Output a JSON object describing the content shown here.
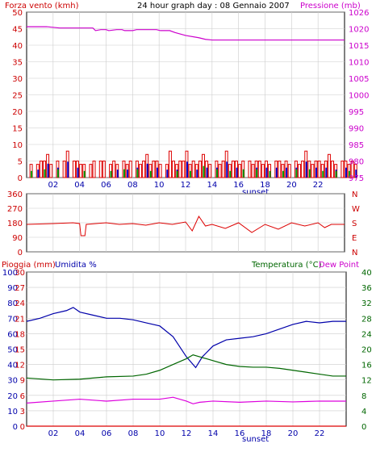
{
  "chart_data": [
    {
      "type": "line",
      "panel": "wind-pressure",
      "title": "24 hour graph day : 08 Gennaio 2007",
      "left_axis_label": "Forza vento (kmh)",
      "right_axis_label": "Pressione (mb)",
      "left_ticks": [
        0,
        5,
        10,
        15,
        20,
        25,
        30,
        35,
        40,
        45,
        50
      ],
      "right_ticks": [
        975,
        980,
        985,
        990,
        995,
        1000,
        1005,
        1010,
        1015,
        1020,
        1026
      ],
      "ylim_left": [
        0,
        50
      ],
      "ylim_right": [
        975,
        1026
      ],
      "x_ticks": [
        "02",
        "04",
        "06",
        "08",
        "10",
        "12",
        "14",
        "16",
        "18",
        "20",
        "22"
      ],
      "x_note": "sunset",
      "grid": true,
      "series": [
        {
          "name": "Pressione",
          "axis": "right",
          "color": "#cc00cc",
          "points": [
            [
              0,
              1021.5
            ],
            [
              1.5,
              1021.5
            ],
            [
              2.5,
              1021.1
            ],
            [
              5,
              1021.1
            ],
            [
              5.2,
              1020.3
            ],
            [
              5.6,
              1020.6
            ],
            [
              6,
              1020.6
            ],
            [
              6.2,
              1020.3
            ],
            [
              6.8,
              1020.6
            ],
            [
              7.2,
              1020.6
            ],
            [
              7.4,
              1020.3
            ],
            [
              8,
              1020.3
            ],
            [
              8.3,
              1020.6
            ],
            [
              9.8,
              1020.6
            ],
            [
              10.1,
              1020.3
            ],
            [
              10.8,
              1020.3
            ],
            [
              11.2,
              1019.7
            ],
            [
              12,
              1018.8
            ],
            [
              13,
              1018.1
            ],
            [
              13.5,
              1017.6
            ],
            [
              14,
              1017.4
            ],
            [
              16,
              1017.4
            ],
            [
              24,
              1017.4
            ]
          ]
        },
        {
          "name": "Vento",
          "axis": "left",
          "color": "#dd0000",
          "type": "bar",
          "sample_step_h": 0.25,
          "values": [
            0,
            4,
            0,
            4,
            5,
            5,
            7,
            4,
            0,
            5,
            0,
            5,
            8,
            0,
            5,
            5,
            4,
            4,
            0,
            4,
            5,
            0,
            5,
            5,
            0,
            4,
            5,
            4,
            0,
            5,
            4,
            5,
            0,
            5,
            4,
            5,
            7,
            4,
            5,
            5,
            4,
            0,
            4,
            8,
            5,
            4,
            5,
            5,
            8,
            4,
            5,
            4,
            5,
            7,
            5,
            4,
            0,
            5,
            4,
            5,
            8,
            4,
            5,
            5,
            4,
            5,
            0,
            5,
            4,
            5,
            5,
            4,
            5,
            4,
            0,
            5,
            5,
            4,
            5,
            4,
            0,
            5,
            4,
            5,
            8,
            5,
            4,
            5,
            5,
            4,
            5,
            7,
            5,
            4,
            0,
            5,
            5,
            4,
            5,
            4
          ]
        }
      ]
    },
    {
      "type": "line",
      "panel": "wind-direction",
      "left_ticks": [
        0,
        90,
        180,
        270,
        360
      ],
      "right_ticks": [
        "N",
        "W",
        "S",
        "E",
        "N"
      ],
      "ylim": [
        0,
        360
      ],
      "series": [
        {
          "name": "Direzione",
          "color": "#dd0000",
          "points": [
            [
              0,
              170
            ],
            [
              2,
              175
            ],
            [
              3.5,
              180
            ],
            [
              4,
              175
            ],
            [
              4.1,
              100
            ],
            [
              4.4,
              100
            ],
            [
              4.5,
              170
            ],
            [
              6,
              180
            ],
            [
              7,
              170
            ],
            [
              8,
              175
            ],
            [
              9,
              165
            ],
            [
              10,
              180
            ],
            [
              11,
              170
            ],
            [
              12,
              185
            ],
            [
              12.5,
              130
            ],
            [
              13,
              220
            ],
            [
              13.5,
              160
            ],
            [
              14,
              170
            ],
            [
              15,
              145
            ],
            [
              16,
              180
            ],
            [
              17,
              120
            ],
            [
              18,
              170
            ],
            [
              19,
              140
            ],
            [
              20,
              180
            ],
            [
              21,
              160
            ],
            [
              22,
              180
            ],
            [
              22.5,
              150
            ],
            [
              23,
              170
            ],
            [
              24,
              170
            ]
          ]
        }
      ]
    },
    {
      "type": "line",
      "panel": "humidity-temperature",
      "labels": {
        "rain": "Pioggia (mm)",
        "humidity": "Umidita %",
        "temperature": "Temperatura (°C)",
        "dew_point": "Dew Point"
      },
      "rain_ticks": [
        0,
        3,
        6,
        9,
        12,
        15,
        18,
        21,
        24,
        27,
        30
      ],
      "humidity_ticks": [
        0,
        10,
        20,
        30,
        40,
        50,
        60,
        70,
        80,
        90,
        100
      ],
      "temperature_ticks": [
        0,
        4,
        8,
        12,
        16,
        20,
        24,
        28,
        32,
        36,
        40
      ],
      "ylim_humidity": [
        0,
        100
      ],
      "ylim_temperature": [
        0,
        40
      ],
      "x_ticks": [
        "02",
        "04",
        "06",
        "08",
        "10",
        "12",
        "14",
        "16",
        "18",
        "20",
        "22"
      ],
      "x_note": "sunset",
      "grid": true,
      "series": [
        {
          "name": "Umidita",
          "color": "#0000aa",
          "points": [
            [
              0,
              68
            ],
            [
              1,
              70
            ],
            [
              2,
              73
            ],
            [
              3,
              75
            ],
            [
              3.5,
              77
            ],
            [
              4,
              74
            ],
            [
              5,
              72
            ],
            [
              6,
              70
            ],
            [
              7,
              70
            ],
            [
              8,
              69
            ],
            [
              9,
              67
            ],
            [
              10,
              65
            ],
            [
              11,
              58
            ],
            [
              12,
              45
            ],
            [
              12.7,
              38
            ],
            [
              13.2,
              45
            ],
            [
              14,
              52
            ],
            [
              15,
              56
            ],
            [
              16,
              57
            ],
            [
              17,
              58
            ],
            [
              18,
              60
            ],
            [
              19,
              63
            ],
            [
              20,
              66
            ],
            [
              21,
              68
            ],
            [
              22,
              67
            ],
            [
              23,
              68
            ],
            [
              24,
              68
            ]
          ]
        },
        {
          "name": "Temperatura",
          "color": "#006600",
          "points": [
            [
              0,
              12.5
            ],
            [
              2,
              12
            ],
            [
              4,
              12.2
            ],
            [
              6,
              12.8
            ],
            [
              8,
              13
            ],
            [
              9,
              13.5
            ],
            [
              10,
              14.5
            ],
            [
              11,
              16
            ],
            [
              12,
              17.5
            ],
            [
              12.5,
              18.5
            ],
            [
              13,
              18
            ],
            [
              14,
              17
            ],
            [
              15,
              16
            ],
            [
              16,
              15.5
            ],
            [
              17,
              15.3
            ],
            [
              18,
              15.3
            ],
            [
              19,
              15
            ],
            [
              20,
              14.5
            ],
            [
              21,
              14
            ],
            [
              22,
              13.5
            ],
            [
              23,
              13
            ],
            [
              24,
              13
            ]
          ]
        },
        {
          "name": "Dew Point",
          "color": "#dd00dd",
          "points": [
            [
              0,
              6
            ],
            [
              2,
              6.5
            ],
            [
              4,
              7
            ],
            [
              6,
              6.5
            ],
            [
              8,
              7
            ],
            [
              10,
              7
            ],
            [
              11,
              7.5
            ],
            [
              12,
              6.5
            ],
            [
              12.5,
              5.8
            ],
            [
              13,
              6.2
            ],
            [
              14,
              6.5
            ],
            [
              16,
              6.2
            ],
            [
              18,
              6.5
            ],
            [
              20,
              6.3
            ],
            [
              22,
              6.5
            ],
            [
              24,
              6.5
            ]
          ]
        },
        {
          "name": "Pioggia",
          "color": "#dd0000",
          "points": [
            [
              0,
              0
            ],
            [
              24,
              0
            ]
          ]
        }
      ]
    }
  ]
}
